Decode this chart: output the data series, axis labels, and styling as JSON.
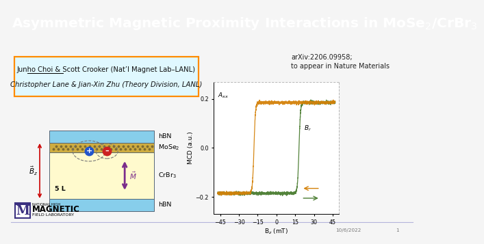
{
  "title_text": "Asymmetric Magnetic Proximity Interactions in MoSe$_2$/CrBr$_3$",
  "title_bg_color": "#00008B",
  "title_text_color": "#FFFFFF",
  "slide_bg_color": "#F5F5F5",
  "author_line1a": "Junho Choi",
  "author_line1b": " & Scott Crooker ",
  "author_line1c": "(Nat’l Magnet Lab–LANL)",
  "author_line2": "Christopher Lane & Jian-Xin Zhu (",
  "author_line2b": "Theory Division, LANL",
  "author_line2c": ")",
  "author_box_edgecolor": "#FF8C00",
  "author_bg_color": "#E0F8FF",
  "arxiv_line1": "arXiv:2206.09958;",
  "arxiv_line2": "to appear in Nature Materials",
  "date_text": "10/6/2022",
  "page_num": "1",
  "hbn_color": "#87CEEB",
  "mose2_color_hex": "#C8A020",
  "crbr3_color": "#FFFACD",
  "arrow_color_bz": "#CC0000",
  "arrow_color_m": "#7B2D8B",
  "plot_xlabel": "B$_z$ (mT)",
  "plot_ylabel": "MCD (a.u.)",
  "plot_xticks": [
    -45,
    -30,
    -15,
    0,
    15,
    30,
    45
  ],
  "plot_yticks": [
    -0.2,
    0.0,
    0.2
  ],
  "plot_ylim": [
    -0.27,
    0.27
  ],
  "plot_xlim": [
    -50,
    50
  ],
  "curve_color_green": "#4A7C30",
  "curve_color_orange": "#D4820A",
  "logo_box_color": "#3B3080",
  "footer_line_color": "#8888CC",
  "Bc_up": 18,
  "Bc_down": -18,
  "M_sat": 0.185
}
